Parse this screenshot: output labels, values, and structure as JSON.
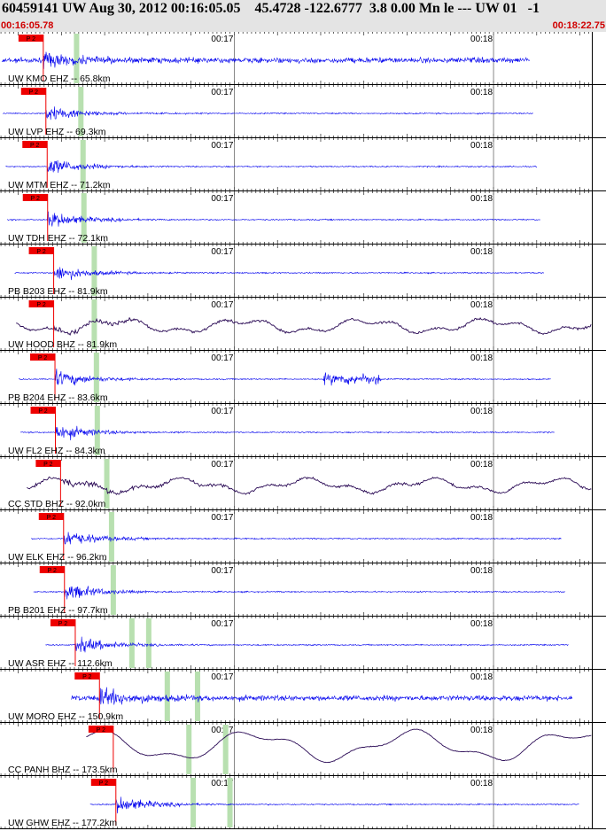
{
  "header": {
    "title": "60459141 UW Aug 30, 2012 00:16:05.05    45.4728 -122.6777  3.8 0.00 Mn le --- UW 01   -1",
    "time_start": "00:16:05.78",
    "time_end": "00:18:22.75"
  },
  "time_axis": {
    "start_s": 965.78,
    "end_s": 1102.75,
    "ticks": [
      {
        "label": "00:17",
        "t": 1020
      },
      {
        "label": "00:18",
        "t": 1080
      }
    ]
  },
  "pick_label": "P 2",
  "colors": {
    "trace_short_period": "#0000ee",
    "trace_broadband": "#2a0a55",
    "pick": "#ee0000",
    "marker": "#b8e0b0",
    "gridline": "#555555"
  },
  "channels": [
    {
      "label": "UW KMO EHZ -- 65.8km",
      "type": "short",
      "pick_t": 975.8,
      "markers": [
        983.5
      ]
    },
    {
      "label": "UW LVP EHZ -- 69.3km",
      "type": "short",
      "pick_t": 976.4,
      "markers": [
        984.5
      ]
    },
    {
      "label": "UW MTM EHZ -- 71.2km",
      "type": "short",
      "pick_t": 976.7,
      "markers": [
        985.0
      ]
    },
    {
      "label": "UW TDH EHZ -- 72.1km",
      "type": "short",
      "pick_t": 976.8,
      "markers": [
        985.2
      ]
    },
    {
      "label": "PB B203 EHZ -- 81.9km",
      "type": "short",
      "pick_t": 978.2,
      "markers": [
        987.6
      ]
    },
    {
      "label": "UW HOOD BHZ -- 81.9km",
      "type": "broadband",
      "pick_t": 978.2,
      "markers": [
        987.6
      ]
    },
    {
      "label": "PB B204 EHZ -- 83.6km",
      "type": "short",
      "pick_t": 978.5,
      "markers": [
        988.1
      ]
    },
    {
      "label": "UW FL2 EHZ -- 84.3km",
      "type": "short",
      "pick_t": 978.6,
      "markers": [
        988.3
      ]
    },
    {
      "label": "CC STD BHZ -- 92.0km",
      "type": "broadband",
      "pick_t": 979.8,
      "markers": [
        990.5
      ]
    },
    {
      "label": "UW ELK EHZ -- 96.2km",
      "type": "short",
      "pick_t": 980.5,
      "markers": [
        991.6
      ]
    },
    {
      "label": "PB B201 EHZ -- 97.7km",
      "type": "short",
      "pick_t": 980.7,
      "markers": [
        992.0
      ]
    },
    {
      "label": "UW ASR EHZ -- 112.6km",
      "type": "short",
      "pick_t": 983.2,
      "markers": [
        996.3,
        1000.2
      ]
    },
    {
      "label": "UW MORO EHZ -- 150.9km",
      "type": "short",
      "pick_t": 988.8,
      "markers": [
        1004.5,
        1011.5
      ]
    },
    {
      "label": "CC PANH BHZ -- 173.5km",
      "type": "broadband",
      "pick_t": 992.0,
      "markers": [
        1009.5,
        1018.0
      ]
    },
    {
      "label": "UW GHW EHZ -- 177.2km",
      "type": "short",
      "pick_t": 992.6,
      "markers": [
        1010.5,
        1019.0
      ]
    }
  ]
}
